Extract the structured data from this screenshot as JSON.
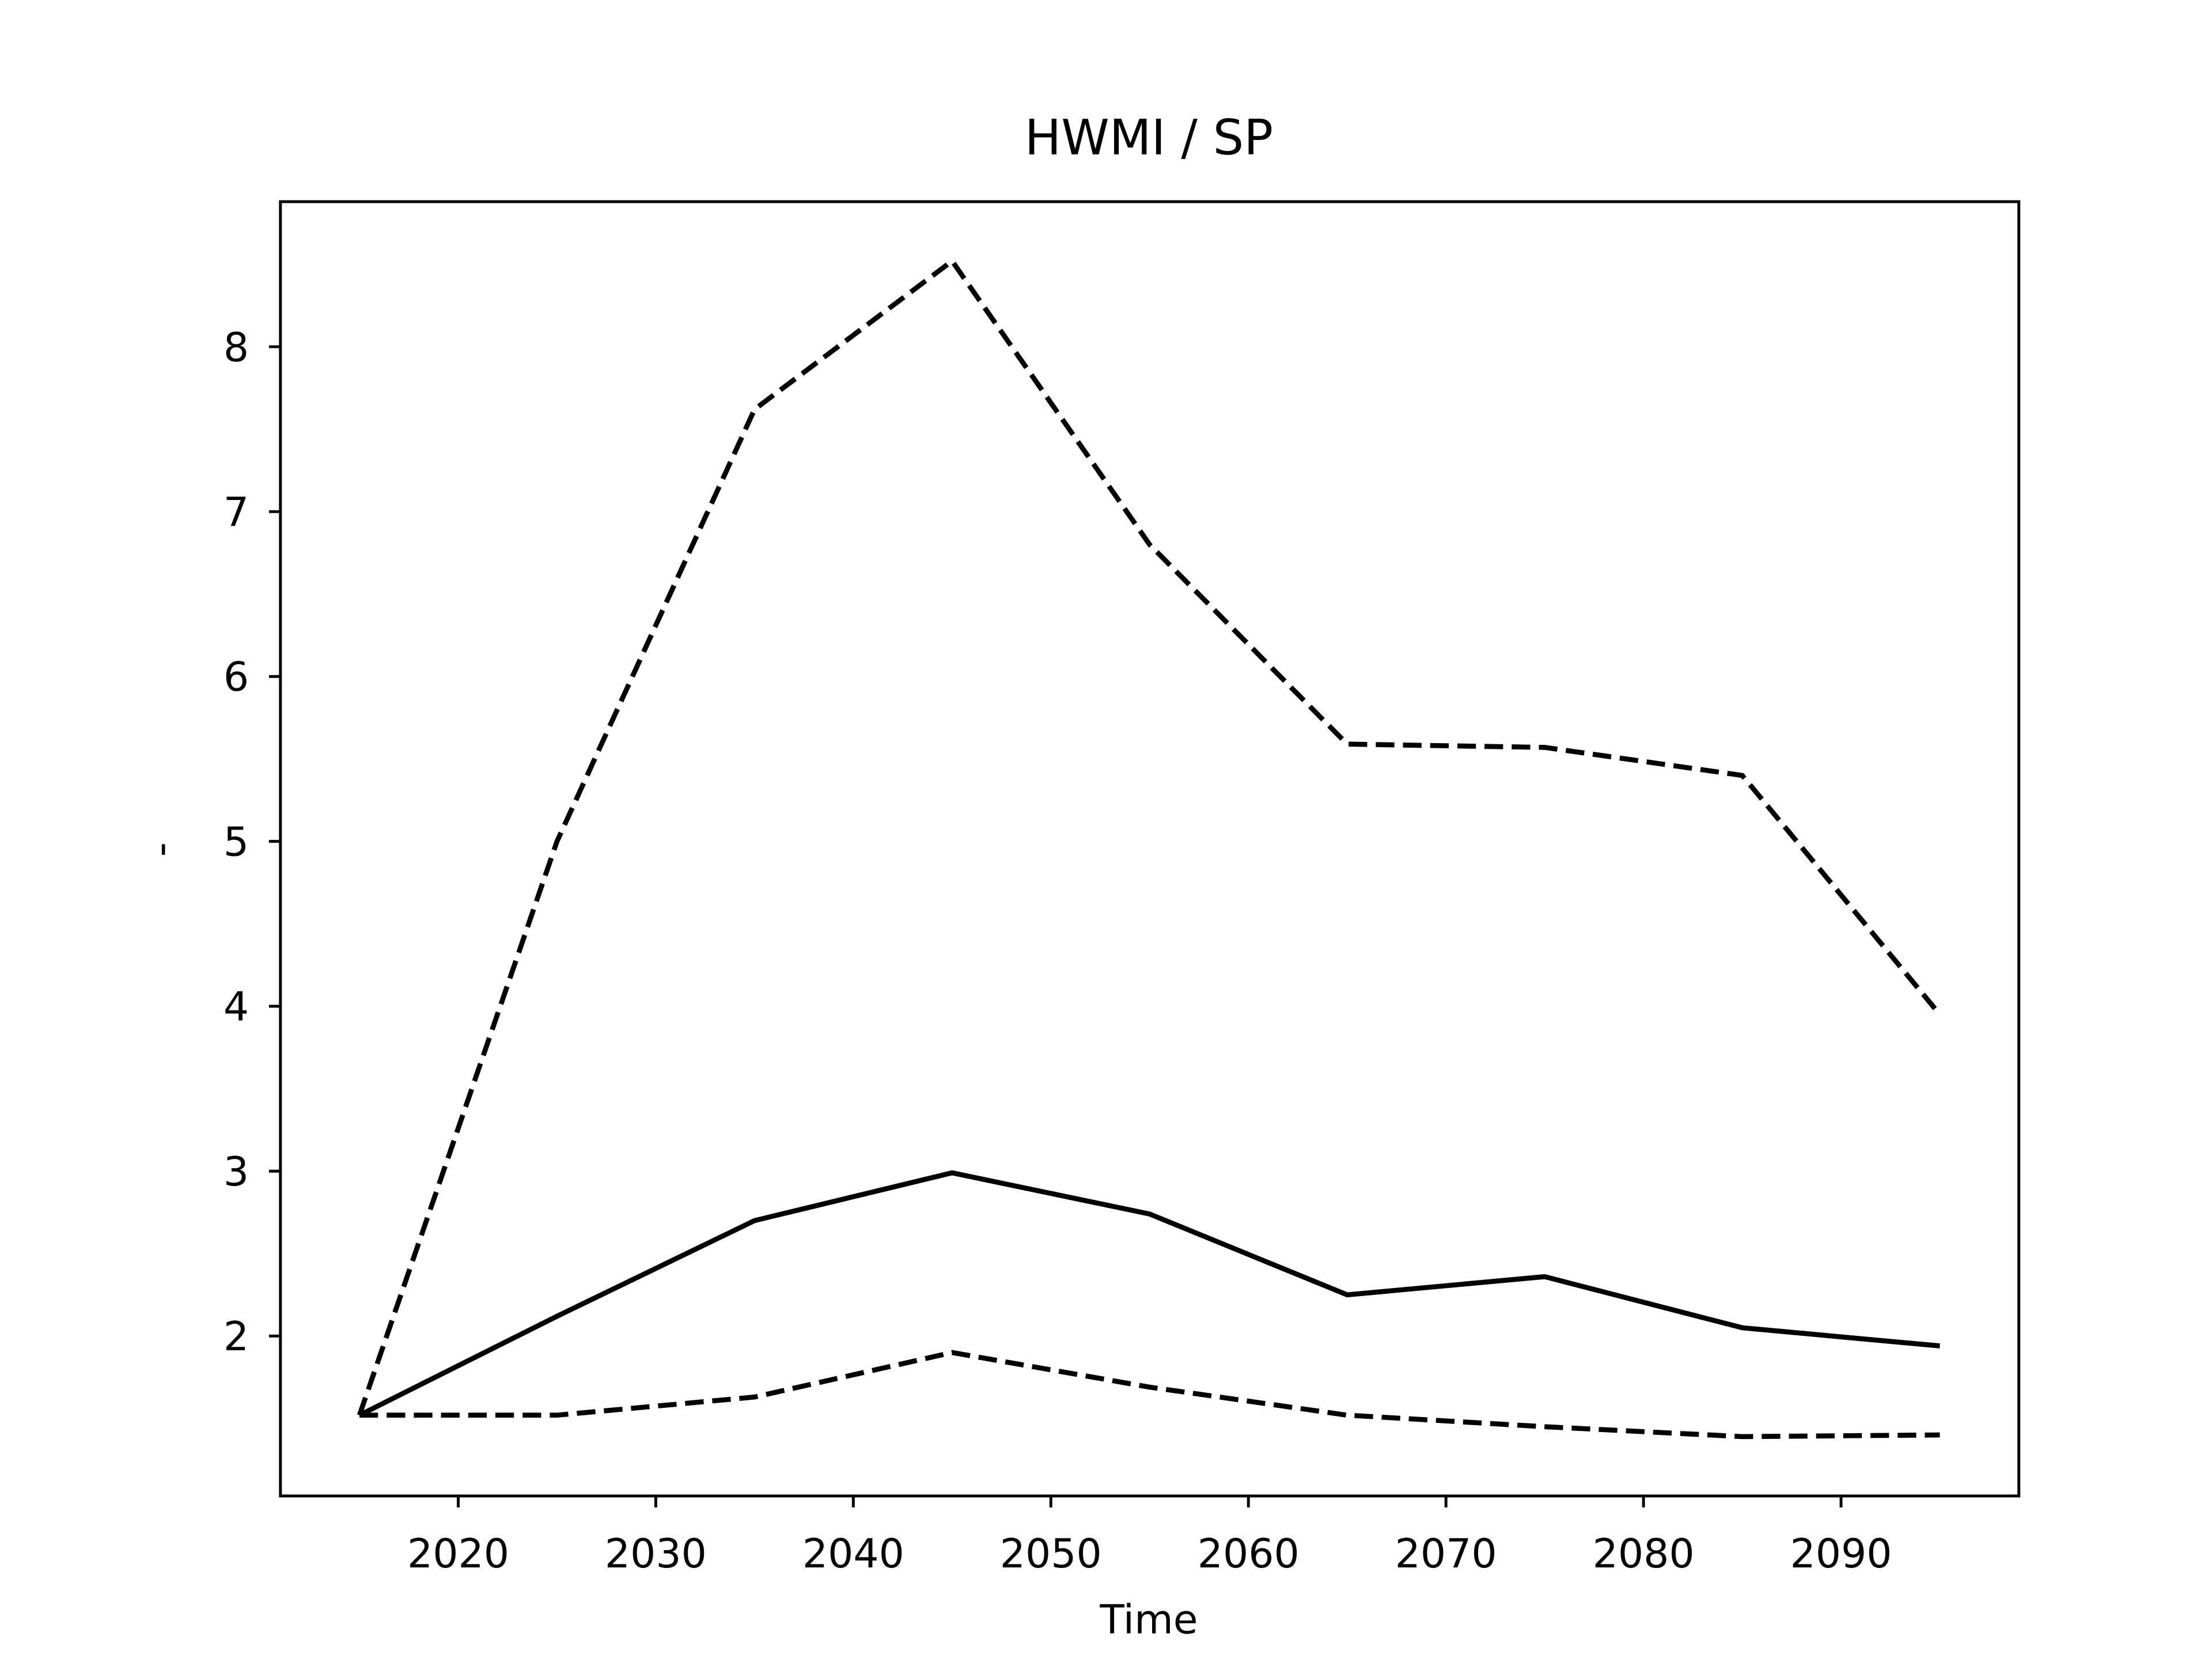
{
  "chart_data": {
    "type": "line",
    "title": "HWMI / SP",
    "x_label": "Time",
    "y_label": "-",
    "x": [
      2015,
      2025,
      2035,
      2045,
      2055,
      2065,
      2075,
      2085,
      2095
    ],
    "series": [
      {
        "color": "#000000",
        "dash": "solid",
        "values": [
          1.52,
          2.12,
          2.7,
          2.99,
          2.74,
          2.25,
          2.36,
          2.05,
          1.94
        ]
      },
      {
        "color": "#000000",
        "dash": "dashed",
        "values": [
          1.52,
          5.0,
          7.62,
          8.52,
          6.8,
          5.59,
          5.57,
          5.4,
          3.95
        ]
      },
      {
        "color": "#000000",
        "dash": "dashed",
        "values": [
          1.52,
          1.52,
          1.63,
          1.9,
          1.69,
          1.52,
          1.45,
          1.39,
          1.4
        ]
      }
    ],
    "xlim": [
      2011,
      2099
    ],
    "xticks": [
      2020,
      2030,
      2040,
      2050,
      2060,
      2070,
      2080,
      2090
    ],
    "ylim": [
      1.03,
      8.88
    ],
    "yticks": [
      2,
      3,
      4,
      5,
      6,
      7,
      8
    ],
    "grid": false
  }
}
